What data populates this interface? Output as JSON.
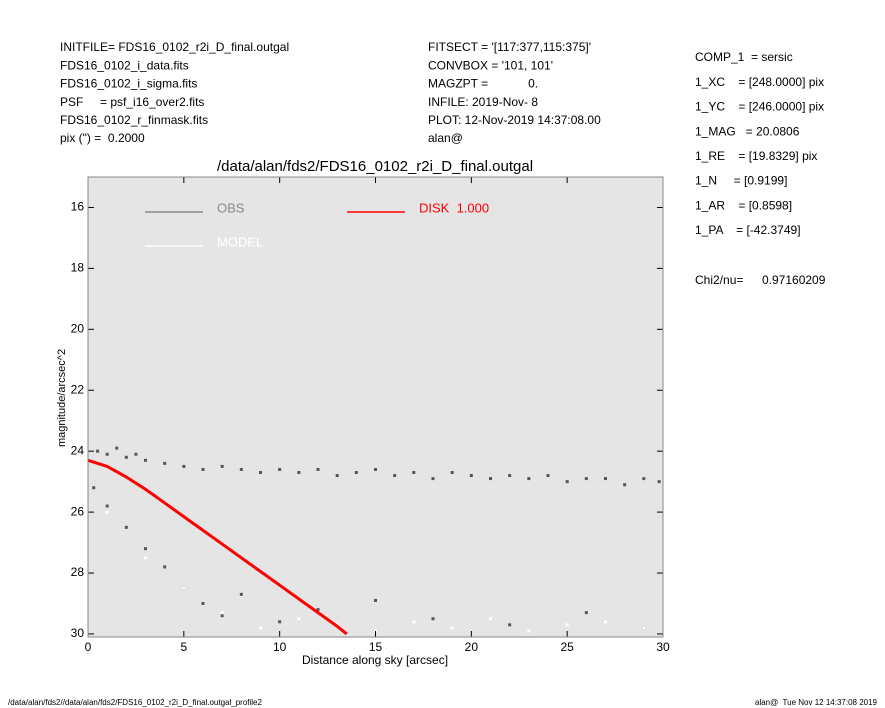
{
  "header": {
    "left": [
      "INITFILE= FDS16_0102_r2i_D_final.outgal",
      "FDS16_0102_i_data.fits",
      "FDS16_0102_i_sigma.fits",
      "PSF     = psf_i16_over2.fits",
      "FDS16_0102_r_finmask.fits",
      "pix (\") =  0.2000"
    ],
    "middle": [
      "FITSECT = '[117:377,115:375]'",
      "CONVBOX = '101, 101'",
      "MAGZPT =            0.",
      "INFILE: 2019-Nov- 8",
      "PLOT: 12-Nov-2019 14:37:08.00",
      "alan@"
    ],
    "right": [
      "COMP_1  = sersic",
      "1_XC    = [248.0000] pix",
      "1_YC    = [246.0000] pix",
      "1_MAG   = 20.0806",
      "1_RE    = [19.8329] pix",
      "1_N     = [0.9199]",
      "1_AR    = [0.8598]",
      "1_PA    = [-42.3749]"
    ],
    "chi2": {
      "label": "Chi2/nu=",
      "value": 0.97160209
    }
  },
  "footer": {
    "left": "/data/alan/fds2//data/alan/fds2/FDS16_0102_r2i_D_final.outgal_profile2",
    "right": "alan@  Tue Nov 12 14:37:08 2019"
  },
  "chart_data": {
    "type": "scatter",
    "title": "/data/alan/fds2/FDS16_0102_r2i_D_final.outgal",
    "x_label": "Distance along sky [arcsec]",
    "y_label": "magnitude/arcsec^2",
    "xlim": [
      0,
      30
    ],
    "ylim": [
      30.1,
      15
    ],
    "xticks": [
      0,
      5,
      10,
      15,
      20,
      25,
      30
    ],
    "yticks": [
      16,
      18,
      20,
      22,
      24,
      26,
      28,
      30
    ],
    "background": "#e5e5e5",
    "series": [
      {
        "name": "OBS",
        "color": "#555555",
        "legend_color": "#888888",
        "x": [
          0.5,
          1,
          1.5,
          2,
          2.5,
          3,
          4,
          5,
          6,
          7,
          8,
          9,
          10,
          11,
          12,
          13,
          14,
          15,
          16,
          17,
          18,
          19,
          20,
          21,
          22,
          23,
          24,
          25,
          26,
          27,
          28,
          29,
          29.8,
          0.3,
          1,
          2,
          3,
          4,
          5,
          6,
          7,
          8,
          10,
          12,
          15,
          18,
          22,
          26,
          29
        ],
        "values": [
          24.0,
          24.1,
          23.9,
          24.2,
          24.1,
          24.3,
          24.4,
          24.5,
          24.6,
          24.5,
          24.6,
          24.7,
          24.6,
          24.7,
          24.6,
          24.8,
          24.7,
          24.6,
          24.8,
          24.7,
          24.9,
          24.7,
          24.8,
          24.9,
          24.8,
          24.9,
          24.8,
          25.0,
          24.9,
          24.9,
          25.1,
          24.9,
          25.0,
          25.2,
          25.8,
          26.5,
          27.2,
          27.8,
          28.5,
          29.0,
          29.4,
          28.7,
          29.6,
          29.2,
          28.9,
          29.5,
          29.7,
          29.3,
          29.8
        ]
      },
      {
        "name": "MODEL",
        "color": "#ffffff",
        "x": [
          1,
          3,
          5,
          7,
          9,
          11,
          13,
          15,
          17,
          19,
          21,
          23,
          25,
          27,
          29
        ],
        "values": [
          26,
          27.5,
          28.5,
          29.3,
          29.8,
          29.5,
          29.7,
          29.9,
          29.6,
          29.8,
          29.5,
          29.9,
          29.7,
          29.6,
          29.8
        ]
      },
      {
        "name": "DISK  1.000",
        "color": "#ff0000",
        "line": true,
        "x": [
          0,
          1,
          2,
          3,
          4,
          5,
          6,
          7,
          8,
          9,
          10,
          11,
          12,
          13,
          13.5
        ],
        "values": [
          24.3,
          24.5,
          24.85,
          25.25,
          25.7,
          26.15,
          26.6,
          27.05,
          27.5,
          27.95,
          28.4,
          28.85,
          29.3,
          29.75,
          30.0
        ]
      }
    ]
  }
}
